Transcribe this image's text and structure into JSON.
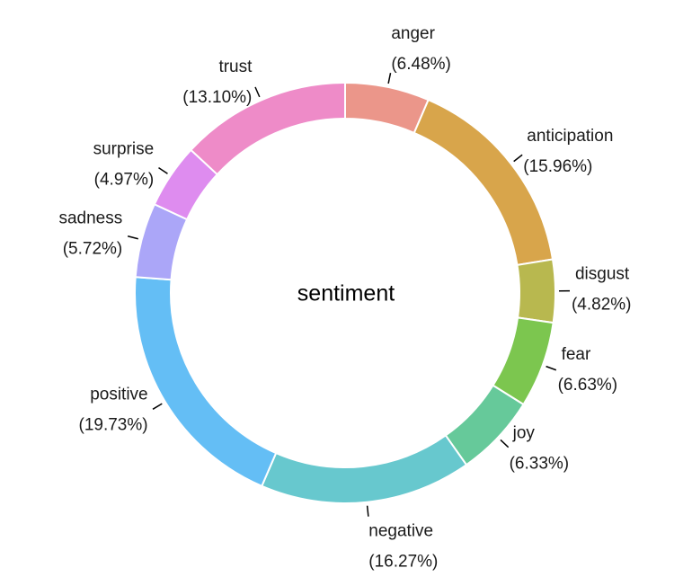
{
  "chart_data": {
    "type": "pie",
    "style": "donut",
    "center_label": "sentiment",
    "slices": [
      {
        "label": "anger",
        "value": 6.48,
        "value_text": "(6.48%)",
        "color": "#EB968A"
      },
      {
        "label": "anticipation",
        "value": 15.96,
        "value_text": "(15.96%)",
        "color": "#D8A54B"
      },
      {
        "label": "disgust",
        "value": 4.82,
        "value_text": "(4.82%)",
        "color": "#B8B84F"
      },
      {
        "label": "fear",
        "value": 6.63,
        "value_text": "(6.63%)",
        "color": "#7CC64F"
      },
      {
        "label": "joy",
        "value": 6.33,
        "value_text": "(6.33%)",
        "color": "#66C99A"
      },
      {
        "label": "negative",
        "value": 16.27,
        "value_text": "(16.27%)",
        "color": "#67C8CE"
      },
      {
        "label": "positive",
        "value": 19.73,
        "value_text": "(19.73%)",
        "color": "#64BEF5"
      },
      {
        "label": "sadness",
        "value": 5.72,
        "value_text": "(5.72%)",
        "color": "#ABA6F8"
      },
      {
        "label": "surprise",
        "value": 4.97,
        "value_text": "(4.97%)",
        "color": "#DE8CEF"
      },
      {
        "label": "trust",
        "value": 13.1,
        "value_text": "(13.10%)",
        "color": "#EE8BC8"
      }
    ]
  }
}
